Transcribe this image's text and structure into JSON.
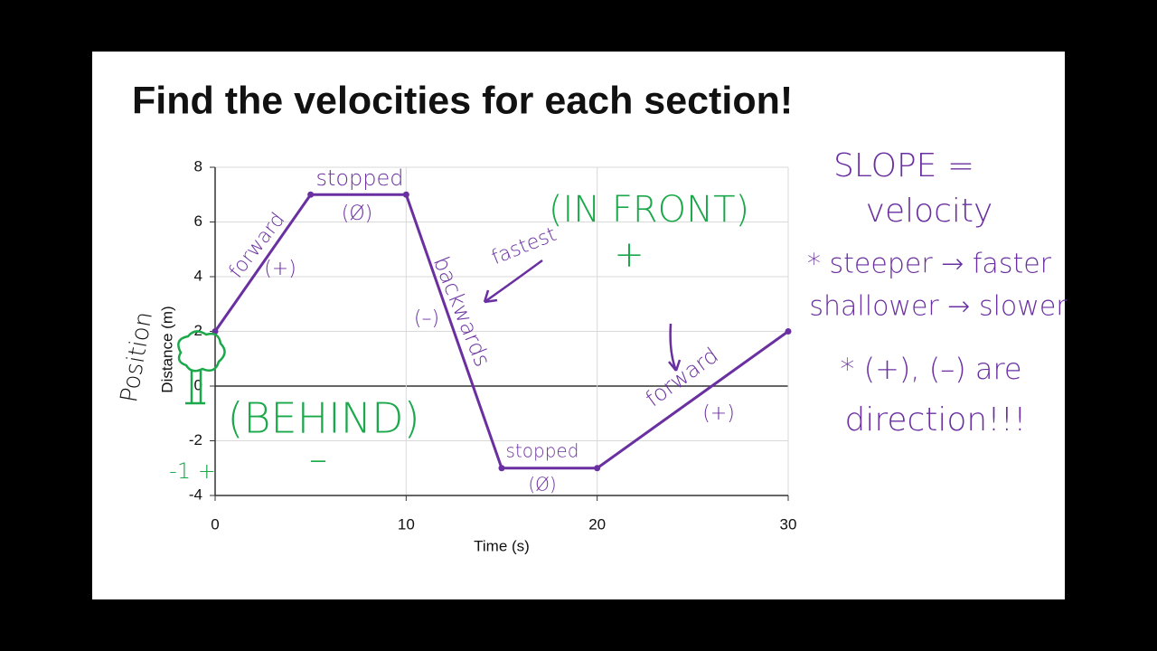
{
  "title": "Find the velocities for each section!",
  "chart_data": {
    "type": "line",
    "x_label": "Time (s)",
    "y_label": "Distance (m)",
    "x": [
      0,
      5,
      10,
      15,
      20,
      30
    ],
    "series": [
      {
        "name": "position",
        "color": "#6a2fa0",
        "values": [
          2,
          7,
          7,
          -3,
          -3,
          2
        ]
      }
    ],
    "xlim": [
      0,
      30
    ],
    "xticks": [
      0,
      10,
      20,
      30
    ],
    "ylim": [
      -4,
      8
    ],
    "yticks": [
      -4,
      -2,
      0,
      2,
      4,
      6,
      8
    ],
    "grid": true
  },
  "annotations": [
    {
      "text": "forward",
      "color": "#6a2fa0"
    },
    {
      "text": "(+)",
      "color": "#6a2fa0"
    },
    {
      "text": "stopped",
      "color": "#6a2fa0"
    },
    {
      "text": "(Ø)",
      "color": "#6a2fa0"
    },
    {
      "text": "backwards",
      "color": "#6a2fa0"
    },
    {
      "text": "(–)",
      "color": "#6a2fa0"
    },
    {
      "text": "fastest",
      "color": "#6a2fa0"
    },
    {
      "text": "(IN FRONT)",
      "color": "#1aa84a"
    },
    {
      "text": "+",
      "color": "#1aa84a"
    },
    {
      "text": "(BEHIND)",
      "color": "#1aa84a"
    },
    {
      "text": "–",
      "color": "#1aa84a"
    },
    {
      "text": "-1 +",
      "color": "#1aa84a"
    },
    {
      "text": "stopped",
      "color": "#6a2fa0"
    },
    {
      "text": "(Ø)",
      "color": "#6a2fa0"
    },
    {
      "text": "forward",
      "color": "#6a2fa0"
    },
    {
      "text": "(+)",
      "color": "#6a2fa0"
    },
    {
      "text": "Position",
      "color": "#111111"
    },
    {
      "text": "SLOPE =",
      "color": "#6a2fa0"
    },
    {
      "text": "velocity",
      "color": "#6a2fa0"
    },
    {
      "text": "* steeper → faster",
      "color": "#6a2fa0"
    },
    {
      "text": "shallower → slower",
      "color": "#6a2fa0"
    },
    {
      "text": "* (+), (–) are",
      "color": "#6a2fa0"
    },
    {
      "text": "direction!!!",
      "color": "#6a2fa0"
    }
  ]
}
